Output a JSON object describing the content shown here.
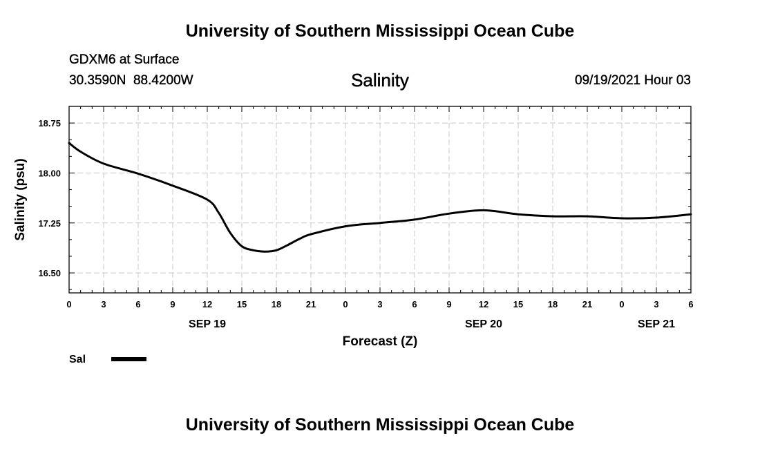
{
  "header": {
    "title_top": "University of Southern Mississippi Ocean Cube",
    "station": "GDXM6 at Surface",
    "coords": "30.3590N  88.4200W",
    "variable": "Salinity",
    "datetime": "09/19/2021 Hour 03"
  },
  "footer": {
    "title_bottom": "University of Southern Mississippi Ocean Cube"
  },
  "legend": {
    "label": "Sal",
    "color": "#000000"
  },
  "chart_data": {
    "type": "line",
    "title": "Salinity",
    "xlabel": "Forecast (Z)",
    "ylabel": "Salinity (psu)",
    "xlim": [
      0,
      54
    ],
    "ylim": [
      16.2,
      19.0
    ],
    "y_ticks": [
      16.5,
      17.25,
      18.0,
      18.75
    ],
    "y_tick_labels": [
      "16.50",
      "17.25",
      "18.00",
      "18.75"
    ],
    "y_minor_step": 0.25,
    "x_ticks": [
      0,
      3,
      6,
      9,
      12,
      15,
      18,
      21,
      24,
      27,
      30,
      33,
      36,
      39,
      42,
      45,
      48,
      51,
      54
    ],
    "x_tick_labels": [
      "0",
      "3",
      "6",
      "9",
      "12",
      "15",
      "18",
      "21",
      "0",
      "3",
      "6",
      "9",
      "12",
      "15",
      "18",
      "21",
      "0",
      "3",
      "6"
    ],
    "day_labels": [
      {
        "x": 12,
        "label": "SEP 19"
      },
      {
        "x": 36,
        "label": "SEP 20"
      },
      {
        "x": 51,
        "label": "SEP 21"
      }
    ],
    "grid": true,
    "legend": "bottom-left",
    "series": [
      {
        "name": "Sal",
        "x": [
          0,
          1,
          3,
          6,
          9,
          12,
          13,
          14,
          15,
          16,
          17,
          18,
          19,
          20,
          21,
          24,
          27,
          30,
          33,
          36,
          39,
          42,
          45,
          48,
          51,
          54
        ],
        "values": [
          18.45,
          18.32,
          18.14,
          17.99,
          17.81,
          17.6,
          17.4,
          17.1,
          16.9,
          16.84,
          16.82,
          16.84,
          16.92,
          17.01,
          17.08,
          17.2,
          17.25,
          17.3,
          17.39,
          17.44,
          17.38,
          17.35,
          17.35,
          17.32,
          17.33,
          17.38
        ]
      }
    ]
  }
}
